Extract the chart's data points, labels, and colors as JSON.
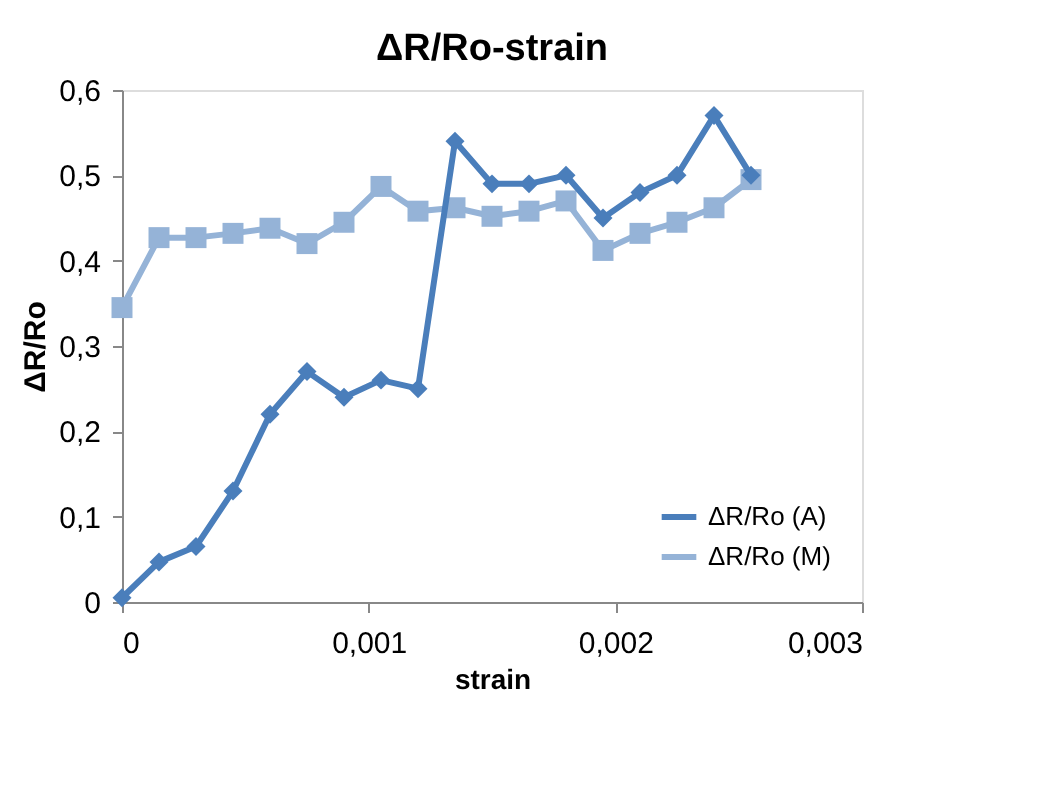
{
  "chart_data": {
    "type": "line",
    "title": "ΔR/Ro-strain",
    "xlabel": "strain",
    "ylabel": "ΔR/Ro",
    "x": [
      0,
      0.00015,
      0.0003,
      0.00045,
      0.0006,
      0.00075,
      0.0009,
      0.00105,
      0.0012,
      0.00135,
      0.0015,
      0.00165,
      0.0018,
      0.00195,
      0.0021,
      0.00225,
      0.0024,
      0.00255
    ],
    "series": [
      {
        "name": "ΔR/Ro (A)",
        "color": "#4a7ebb",
        "marker": "diamond",
        "values": [
          0.005,
          0.047,
          0.065,
          0.13,
          0.22,
          0.27,
          0.24,
          0.26,
          0.25,
          0.54,
          0.49,
          0.49,
          0.5,
          0.45,
          0.48,
          0.5,
          0.57,
          0.5
        ]
      },
      {
        "name": "ΔR/Ro (M)",
        "color": "#95b3d7",
        "marker": "square",
        "values": [
          0.345,
          0.427,
          0.427,
          0.432,
          0.438,
          0.42,
          0.445,
          0.487,
          0.458,
          0.462,
          0.452,
          0.458,
          0.47,
          0.412,
          0.432,
          0.445,
          0.462,
          0.495
        ]
      }
    ],
    "xlim": [
      0,
      0.003
    ],
    "xticks": [
      {
        "value": 0,
        "label": "0"
      },
      {
        "value": 0.001,
        "label": "0,001"
      },
      {
        "value": 0.002,
        "label": "0,002"
      },
      {
        "value": 0.003,
        "label": "0,003"
      }
    ],
    "ylim": [
      0,
      0.6
    ],
    "yticks": [
      {
        "value": 0,
        "label": "0"
      },
      {
        "value": 0.1,
        "label": "0,1"
      },
      {
        "value": 0.2,
        "label": "0,2"
      },
      {
        "value": 0.3,
        "label": "0,3"
      },
      {
        "value": 0.4,
        "label": "0,4"
      },
      {
        "value": 0.5,
        "label": "0,5"
      },
      {
        "value": 0.6,
        "label": "0,6"
      }
    ],
    "grid": false,
    "legend": "bottom right"
  }
}
